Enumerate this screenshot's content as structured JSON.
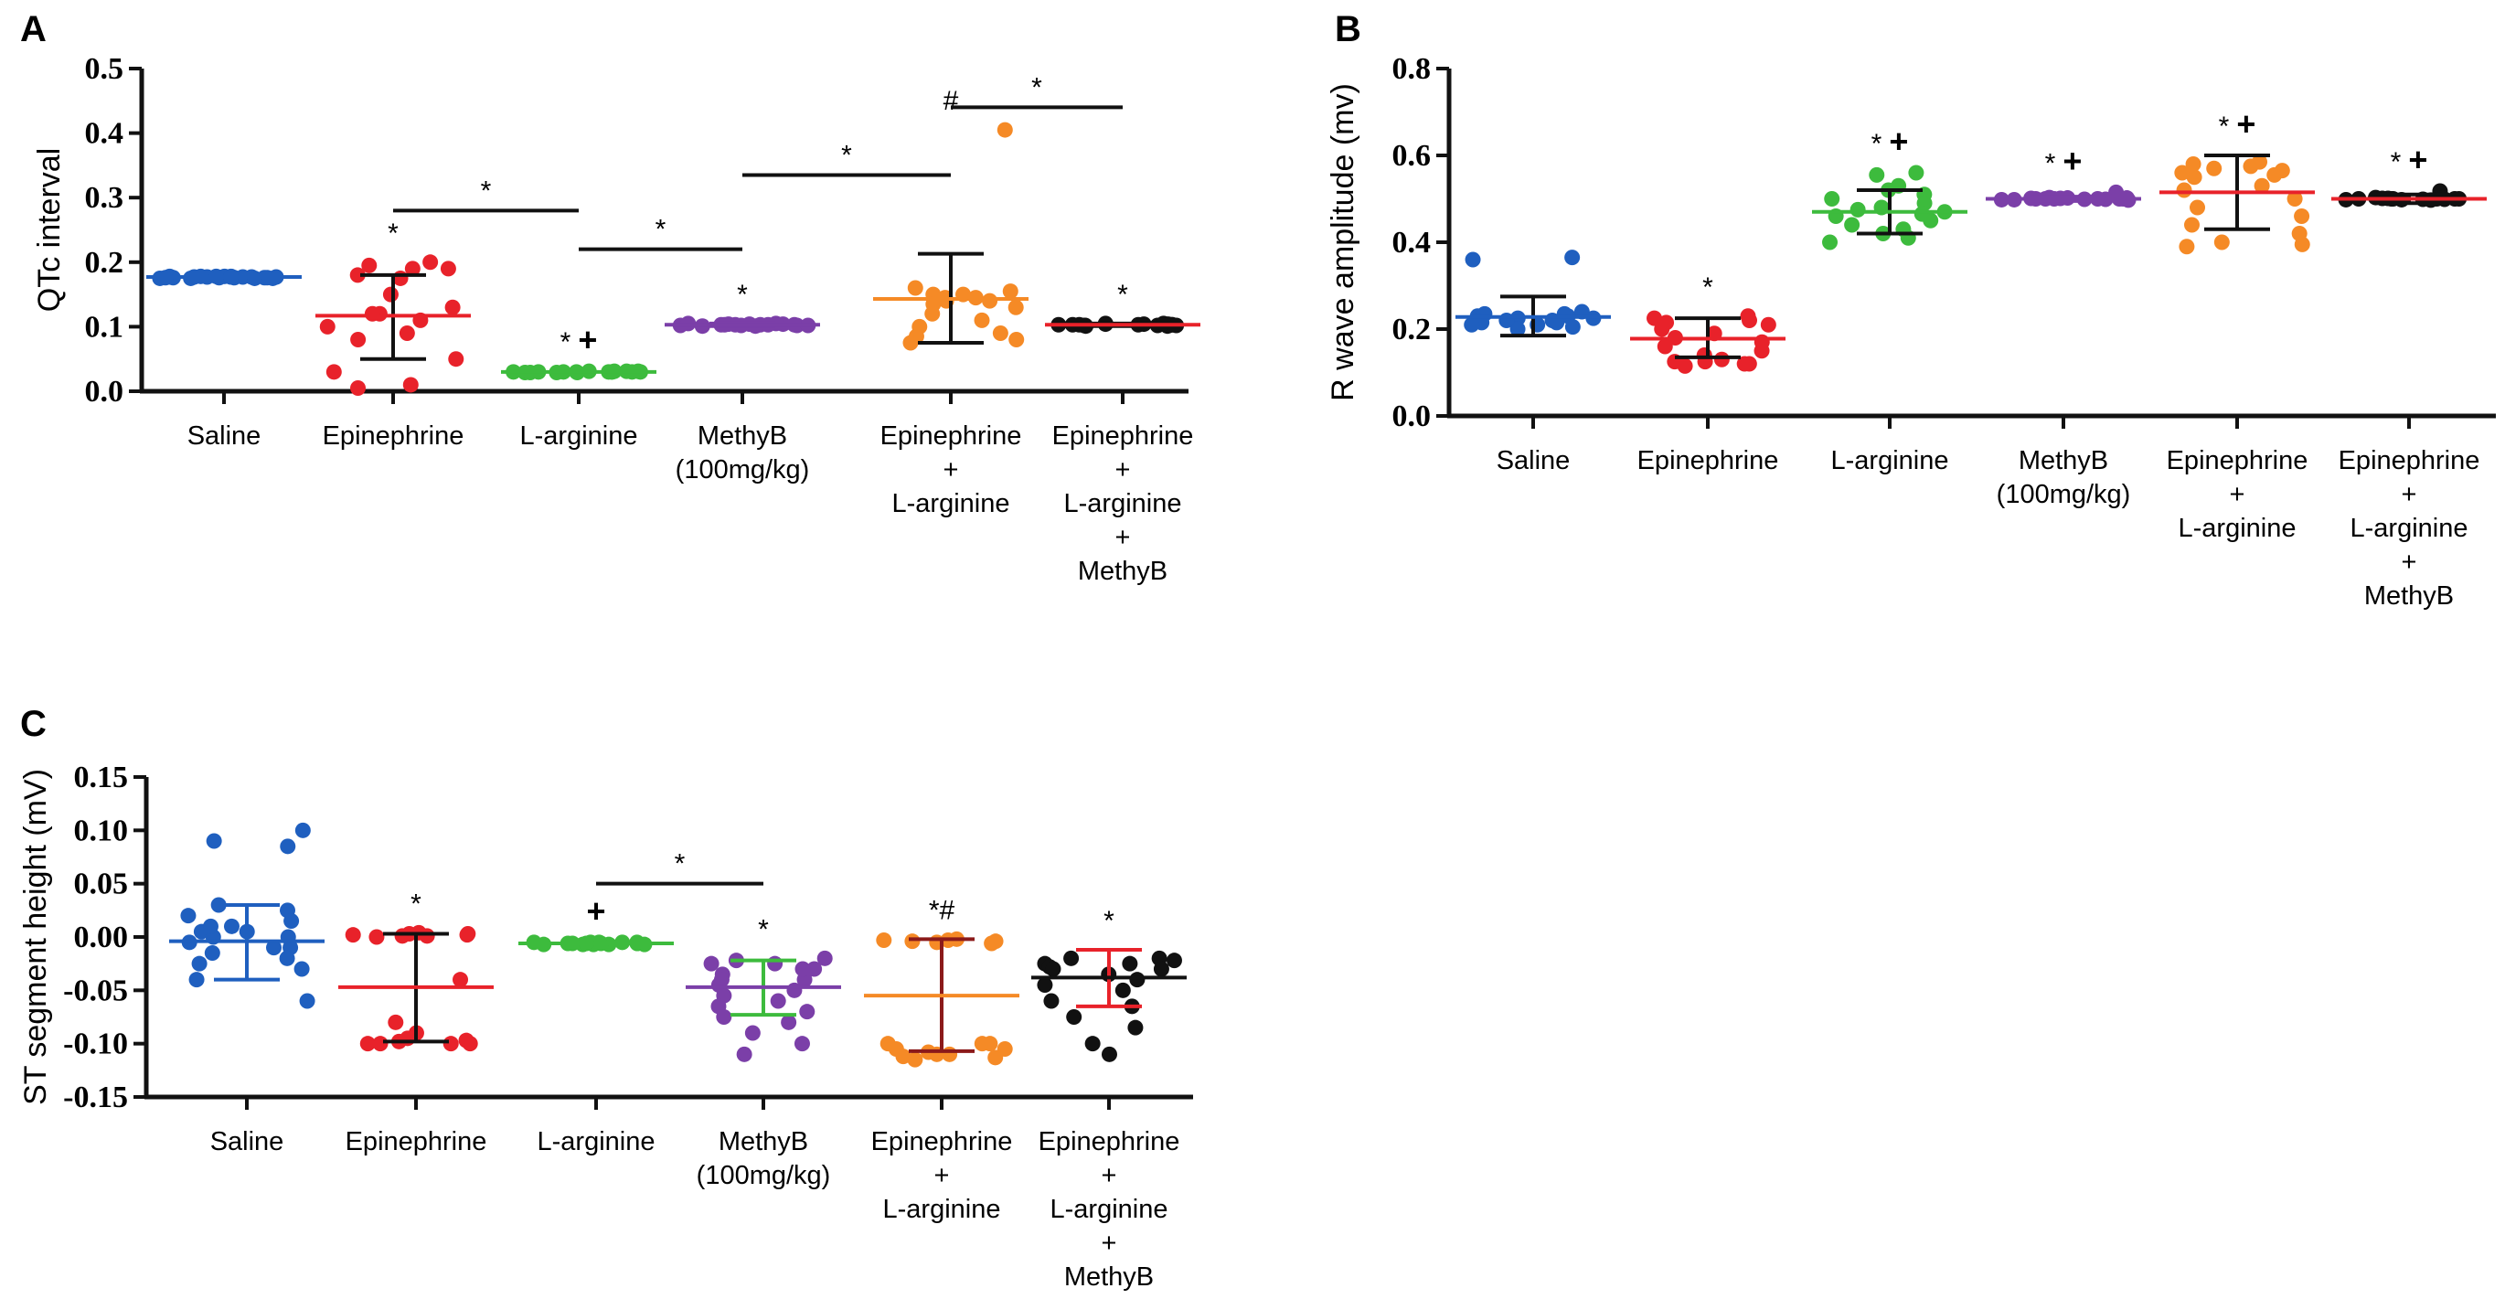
{
  "chart_data": [
    {
      "panel": "A",
      "type": "scatter",
      "ylabel": "QTc interval",
      "ylim": [
        0,
        0.5
      ],
      "yticks": [
        "0.0",
        "0.1",
        "0.2",
        "0.3",
        "0.4",
        "0.5"
      ],
      "categories": [
        {
          "lines": [
            "Saline"
          ]
        },
        {
          "lines": [
            "Epinephrine"
          ]
        },
        {
          "lines": [
            "L-arginine"
          ]
        },
        {
          "lines": [
            "MethyB",
            "(100mg/kg)"
          ]
        },
        {
          "lines": [
            "Epinephrine",
            "+",
            "L-arginine"
          ]
        },
        {
          "lines": [
            "Epinephrine",
            "+",
            "L-arginine",
            "+",
            "MethyB"
          ]
        }
      ],
      "groups": [
        {
          "color": "#1f5fbf",
          "mean": 0.177,
          "sd_low": 0.177,
          "sd_high": 0.177,
          "mean_color": "#1f5fbf",
          "err_color": "#1f5fbf",
          "points": [
            0.175,
            0.176,
            0.177,
            0.178,
            0.176,
            0.177,
            0.178,
            0.175,
            0.177,
            0.176,
            0.178,
            0.177,
            0.176,
            0.175,
            0.177,
            0.178,
            0.176,
            0.177,
            0.175,
            0.178,
            0.177,
            0.176
          ],
          "sig": "",
          "sig_plus": false
        },
        {
          "color": "#e8222a",
          "mean": 0.117,
          "sd_low": 0.05,
          "sd_high": 0.18,
          "mean_color": "#e8222a",
          "err_color": "#111111",
          "points": [
            0.2,
            0.195,
            0.19,
            0.18,
            0.175,
            0.15,
            0.13,
            0.12,
            0.11,
            0.1,
            0.09,
            0.08,
            0.05,
            0.03,
            0.01,
            0.005,
            0.19,
            0.12
          ],
          "sig": "*",
          "sig_plus": false
        },
        {
          "color": "#3dbb3d",
          "mean": 0.03,
          "sd_low": 0.03,
          "sd_high": 0.03,
          "mean_color": "#3dbb3d",
          "err_color": "#3dbb3d",
          "points": [
            0.03,
            0.029,
            0.031,
            0.03,
            0.03,
            0.029,
            0.031,
            0.03,
            0.03,
            0.029,
            0.031,
            0.03,
            0.03,
            0.029,
            0.031,
            0.03,
            0.03
          ],
          "sig": "*",
          "sig_plus": true
        },
        {
          "color": "#7b3fa8",
          "mean": 0.103,
          "sd_low": 0.101,
          "sd_high": 0.105,
          "mean_color": "#7b3fa8",
          "err_color": "#7b3fa8",
          "points": [
            0.103,
            0.102,
            0.104,
            0.103,
            0.101,
            0.105,
            0.103,
            0.102,
            0.104,
            0.103,
            0.102,
            0.104,
            0.103,
            0.101,
            0.105,
            0.103,
            0.102
          ],
          "sig": "*",
          "sig_plus": false
        },
        {
          "color": "#f58a26",
          "mean": 0.143,
          "sd_low": 0.075,
          "sd_high": 0.213,
          "mean_color": "#f58a26",
          "err_color": "#111111",
          "points": [
            0.405,
            0.16,
            0.155,
            0.15,
            0.15,
            0.145,
            0.145,
            0.14,
            0.14,
            0.135,
            0.13,
            0.12,
            0.11,
            0.1,
            0.09,
            0.085,
            0.08,
            0.075
          ],
          "sig": "#",
          "sig_plus": false
        },
        {
          "color": "#111111",
          "mean": 0.103,
          "sd_low": 0.101,
          "sd_high": 0.105,
          "mean_color": "#e8222a",
          "err_color": "#111111",
          "points": [
            0.103,
            0.102,
            0.104,
            0.103,
            0.101,
            0.105,
            0.103,
            0.102,
            0.104,
            0.103,
            0.102,
            0.104,
            0.103,
            0.101,
            0.105,
            0.103,
            0.102
          ],
          "sig": "*",
          "sig_plus": false
        }
      ],
      "brackets": [
        {
          "from": 1,
          "to": 2,
          "y": 0.28,
          "label": "*"
        },
        {
          "from": 2,
          "to": 3,
          "y": 0.22,
          "label": "*"
        },
        {
          "from": 3,
          "to": 4,
          "y": 0.335,
          "label": "*"
        },
        {
          "from": 4,
          "to": 5,
          "y": 0.44,
          "label": "*"
        }
      ]
    },
    {
      "panel": "B",
      "type": "scatter",
      "ylabel": "R wave amplitude (mv)",
      "ylim": [
        0,
        0.8
      ],
      "yticks": [
        "0.0",
        "0.2",
        "0.4",
        "0.6",
        "0.8"
      ],
      "categories": [
        {
          "lines": [
            "Saline"
          ]
        },
        {
          "lines": [
            "Epinephrine"
          ]
        },
        {
          "lines": [
            "L-arginine"
          ]
        },
        {
          "lines": [
            "MethyB",
            "(100mg/kg)"
          ]
        },
        {
          "lines": [
            "Epinephrine",
            "+",
            "L-arginine"
          ]
        },
        {
          "lines": [
            "Epinephrine",
            "+",
            "L-arginine",
            "+",
            "MethyB"
          ]
        }
      ],
      "groups": [
        {
          "color": "#1f5fbf",
          "mean": 0.228,
          "sd_low": 0.185,
          "sd_high": 0.275,
          "mean_color": "#1f5fbf",
          "err_color": "#111111",
          "points": [
            0.365,
            0.36,
            0.24,
            0.235,
            0.23,
            0.23,
            0.225,
            0.225,
            0.22,
            0.22,
            0.215,
            0.215,
            0.21,
            0.21,
            0.205,
            0.2,
            0.235,
            0.22
          ],
          "sig": "",
          "sig_plus": false
        },
        {
          "color": "#e8222a",
          "mean": 0.178,
          "sd_low": 0.135,
          "sd_high": 0.225,
          "mean_color": "#e8222a",
          "err_color": "#111111",
          "points": [
            0.23,
            0.225,
            0.22,
            0.215,
            0.21,
            0.2,
            0.19,
            0.18,
            0.17,
            0.16,
            0.15,
            0.14,
            0.13,
            0.125,
            0.12,
            0.115,
            0.12,
            0.125
          ],
          "sig": "*",
          "sig_plus": false
        },
        {
          "color": "#3dbb3d",
          "mean": 0.47,
          "sd_low": 0.42,
          "sd_high": 0.52,
          "mean_color": "#3dbb3d",
          "err_color": "#111111",
          "points": [
            0.56,
            0.555,
            0.53,
            0.52,
            0.51,
            0.5,
            0.49,
            0.48,
            0.47,
            0.46,
            0.45,
            0.44,
            0.43,
            0.42,
            0.41,
            0.4,
            0.465,
            0.475
          ],
          "sig": "*",
          "sig_plus": true
        },
        {
          "color": "#7b3fa8",
          "mean": 0.5,
          "sd_low": 0.495,
          "sd_high": 0.505,
          "mean_color": "#7b3fa8",
          "err_color": "#7b3fa8",
          "points": [
            0.5,
            0.498,
            0.502,
            0.5,
            0.499,
            0.501,
            0.5,
            0.503,
            0.497,
            0.5,
            0.515,
            0.5,
            0.499,
            0.501,
            0.5,
            0.498,
            0.502
          ],
          "sig": "*",
          "sig_plus": true
        },
        {
          "color": "#f58a26",
          "mean": 0.515,
          "sd_low": 0.43,
          "sd_high": 0.6,
          "mean_color": "#e8222a",
          "err_color": "#111111",
          "points": [
            0.585,
            0.58,
            0.575,
            0.57,
            0.565,
            0.56,
            0.555,
            0.55,
            0.53,
            0.52,
            0.5,
            0.48,
            0.46,
            0.44,
            0.42,
            0.4,
            0.395,
            0.39
          ],
          "sig": "*",
          "sig_plus": true
        },
        {
          "color": "#111111",
          "mean": 0.5,
          "sd_low": 0.49,
          "sd_high": 0.51,
          "mean_color": "#e8222a",
          "err_color": "#111111",
          "points": [
            0.5,
            0.498,
            0.502,
            0.5,
            0.499,
            0.501,
            0.5,
            0.503,
            0.497,
            0.5,
            0.518,
            0.5,
            0.499,
            0.501,
            0.5,
            0.498,
            0.502
          ],
          "sig": "*",
          "sig_plus": true
        }
      ],
      "brackets": []
    },
    {
      "panel": "C",
      "type": "scatter",
      "ylabel": "ST segment height (mV)",
      "ylim": [
        -0.15,
        0.15
      ],
      "yticks": [
        "-0.15",
        "-0.10",
        "-0.05",
        "0.00",
        "0.05",
        "0.10",
        "0.15"
      ],
      "categories": [
        {
          "lines": [
            "Saline"
          ]
        },
        {
          "lines": [
            "Epinephrine"
          ]
        },
        {
          "lines": [
            "L-arginine"
          ]
        },
        {
          "lines": [
            "MethyB",
            "(100mg/kg)"
          ]
        },
        {
          "lines": [
            "Epinephrine",
            "+",
            "L-arginine"
          ]
        },
        {
          "lines": [
            "Epinephrine",
            "+",
            "L-arginine",
            "+",
            "MethyB"
          ]
        }
      ],
      "groups": [
        {
          "color": "#1f5fbf",
          "mean": -0.004,
          "sd_low": -0.04,
          "sd_high": 0.03,
          "mean_color": "#1f5fbf",
          "err_color": "#1f5fbf",
          "points": [
            0.1,
            0.09,
            0.085,
            0.03,
            0.025,
            0.02,
            0.015,
            0.01,
            0.005,
            0.005,
            0.0,
            -0.005,
            -0.01,
            -0.015,
            -0.02,
            -0.025,
            -0.03,
            -0.04,
            -0.06,
            0.0,
            -0.01,
            0.01
          ],
          "sig": "",
          "sig_plus": false
        },
        {
          "color": "#e8222a",
          "mean": -0.047,
          "sd_low": -0.098,
          "sd_high": 0.003,
          "mean_color": "#e8222a",
          "err_color": "#111111",
          "points": [
            0.004,
            0.003,
            0.003,
            0.002,
            0.002,
            0.001,
            0.001,
            0.0,
            -0.04,
            -0.08,
            -0.09,
            -0.095,
            -0.1,
            -0.1,
            -0.1,
            -0.098,
            -0.097,
            -0.1
          ],
          "sig": "*",
          "sig_plus": false
        },
        {
          "color": "#3dbb3d",
          "mean": -0.006,
          "sd_low": -0.006,
          "sd_high": -0.006,
          "mean_color": "#3dbb3d",
          "err_color": "#3dbb3d",
          "points": [
            -0.006,
            -0.005,
            -0.007,
            -0.006,
            -0.005,
            -0.007,
            -0.006,
            -0.005,
            -0.007,
            -0.006,
            -0.005,
            -0.007,
            -0.006,
            -0.006,
            -0.005,
            -0.007
          ],
          "sig": "",
          "sig_plus": true
        },
        {
          "color": "#7b3fa8",
          "mean": -0.047,
          "sd_low": -0.073,
          "sd_high": -0.022,
          "mean_color": "#7b3fa8",
          "err_color": "#3dbb3d",
          "points": [
            -0.02,
            -0.022,
            -0.025,
            -0.025,
            -0.03,
            -0.035,
            -0.04,
            -0.045,
            -0.05,
            -0.055,
            -0.06,
            -0.065,
            -0.07,
            -0.075,
            -0.08,
            -0.09,
            -0.1,
            -0.11,
            -0.03,
            -0.04
          ],
          "sig": "*",
          "sig_plus": false
        },
        {
          "color": "#f58a26",
          "mean": -0.055,
          "sd_low": -0.107,
          "sd_high": -0.002,
          "mean_color": "#f58a26",
          "err_color": "#8b1a1a",
          "points": [
            -0.002,
            -0.003,
            -0.003,
            -0.004,
            -0.004,
            -0.005,
            -0.006,
            -0.1,
            -0.1,
            -0.105,
            -0.105,
            -0.11,
            -0.11,
            -0.112,
            -0.113,
            -0.115,
            -0.1,
            -0.108
          ],
          "sig": "*#",
          "sig_plus": false
        },
        {
          "color": "#111111",
          "mean": -0.038,
          "sd_low": -0.065,
          "sd_high": -0.012,
          "mean_color": "#111111",
          "err_color": "#e8222a",
          "points": [
            -0.02,
            -0.02,
            -0.022,
            -0.025,
            -0.025,
            -0.028,
            -0.03,
            -0.035,
            -0.04,
            -0.045,
            -0.05,
            -0.06,
            -0.065,
            -0.075,
            -0.085,
            -0.1,
            -0.11,
            -0.03
          ],
          "sig": "*",
          "sig_plus": false
        }
      ],
      "brackets": [
        {
          "from": 2,
          "to": 3,
          "y": 0.05,
          "label": "*"
        }
      ]
    }
  ]
}
